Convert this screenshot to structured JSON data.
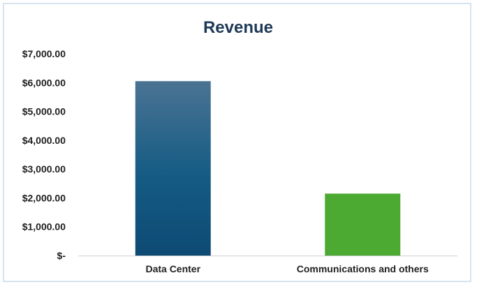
{
  "chart_data": {
    "type": "bar",
    "title": "Revenue",
    "xlabel": "",
    "ylabel": "",
    "categories": [
      "Data Center",
      "Communications and others"
    ],
    "values": [
      6050,
      2150
    ],
    "ylim": [
      0,
      7000
    ],
    "yticks": [
      0,
      1000,
      2000,
      3000,
      4000,
      5000,
      6000,
      7000
    ],
    "ytick_labels": [
      "$-",
      "$1,000.00",
      "$2,000.00",
      "$3,000.00",
      "$4,000.00",
      "$5,000.00",
      "$6,000.00",
      "$7,000.00"
    ],
    "colors": [
      "#0e4f78",
      "#4caa32"
    ],
    "grid": false,
    "legend": "none"
  }
}
